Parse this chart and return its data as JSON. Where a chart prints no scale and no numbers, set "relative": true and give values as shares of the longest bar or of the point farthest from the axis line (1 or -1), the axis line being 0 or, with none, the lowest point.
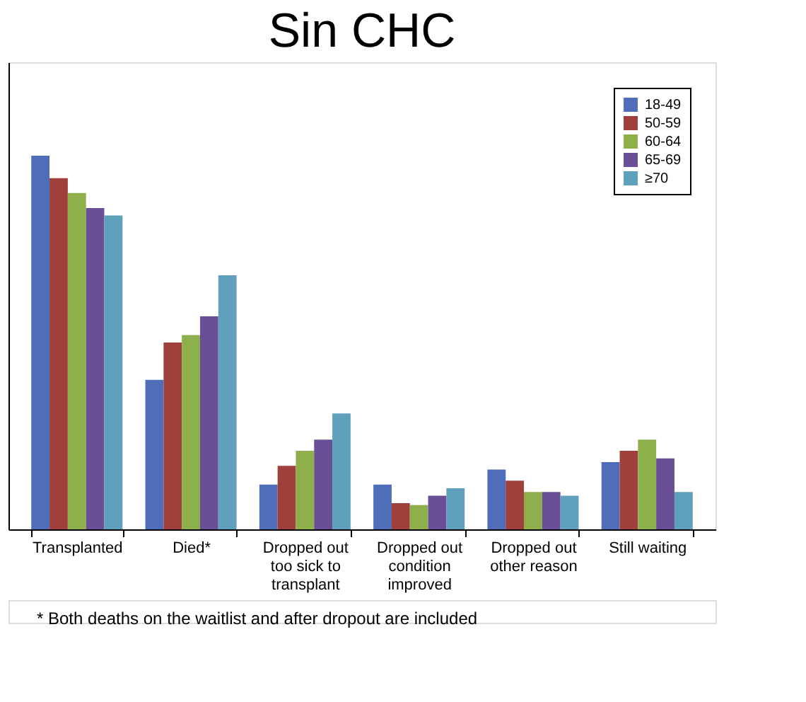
{
  "chart_data": {
    "type": "bar",
    "title": "Sin CHC",
    "relative": true,
    "legend": "top right",
    "grid": false,
    "categories": [
      "Transplanted",
      "Died*",
      "Dropped out too sick to transplant",
      "Dropped out condition improved",
      "Dropped out other reason",
      "Still waiting"
    ],
    "series": [
      {
        "name": "18-49",
        "color": "#4f6db8",
        "values": [
          1,
          0.4,
          0.12,
          0.12,
          0.16,
          0.18
        ]
      },
      {
        "name": "50-59",
        "color": "#a0403c",
        "values": [
          0.94,
          0.5,
          0.17,
          0.07,
          0.13,
          0.21
        ]
      },
      {
        "name": "60-64",
        "color": "#8db04b",
        "values": [
          0.9,
          0.52,
          0.21,
          0.065,
          0.1,
          0.24
        ]
      },
      {
        "name": "65-69",
        "color": "#6a4f96",
        "values": [
          0.86,
          0.57,
          0.24,
          0.09,
          0.1,
          0.19
        ]
      },
      {
        "name": "≥70",
        "color": "#5fa0bc",
        "values": [
          0.84,
          0.68,
          0.31,
          0.11,
          0.09,
          0.1
        ]
      }
    ],
    "annotations": [
      "* Both deaths on the waitlist and after dropout are included"
    ]
  }
}
